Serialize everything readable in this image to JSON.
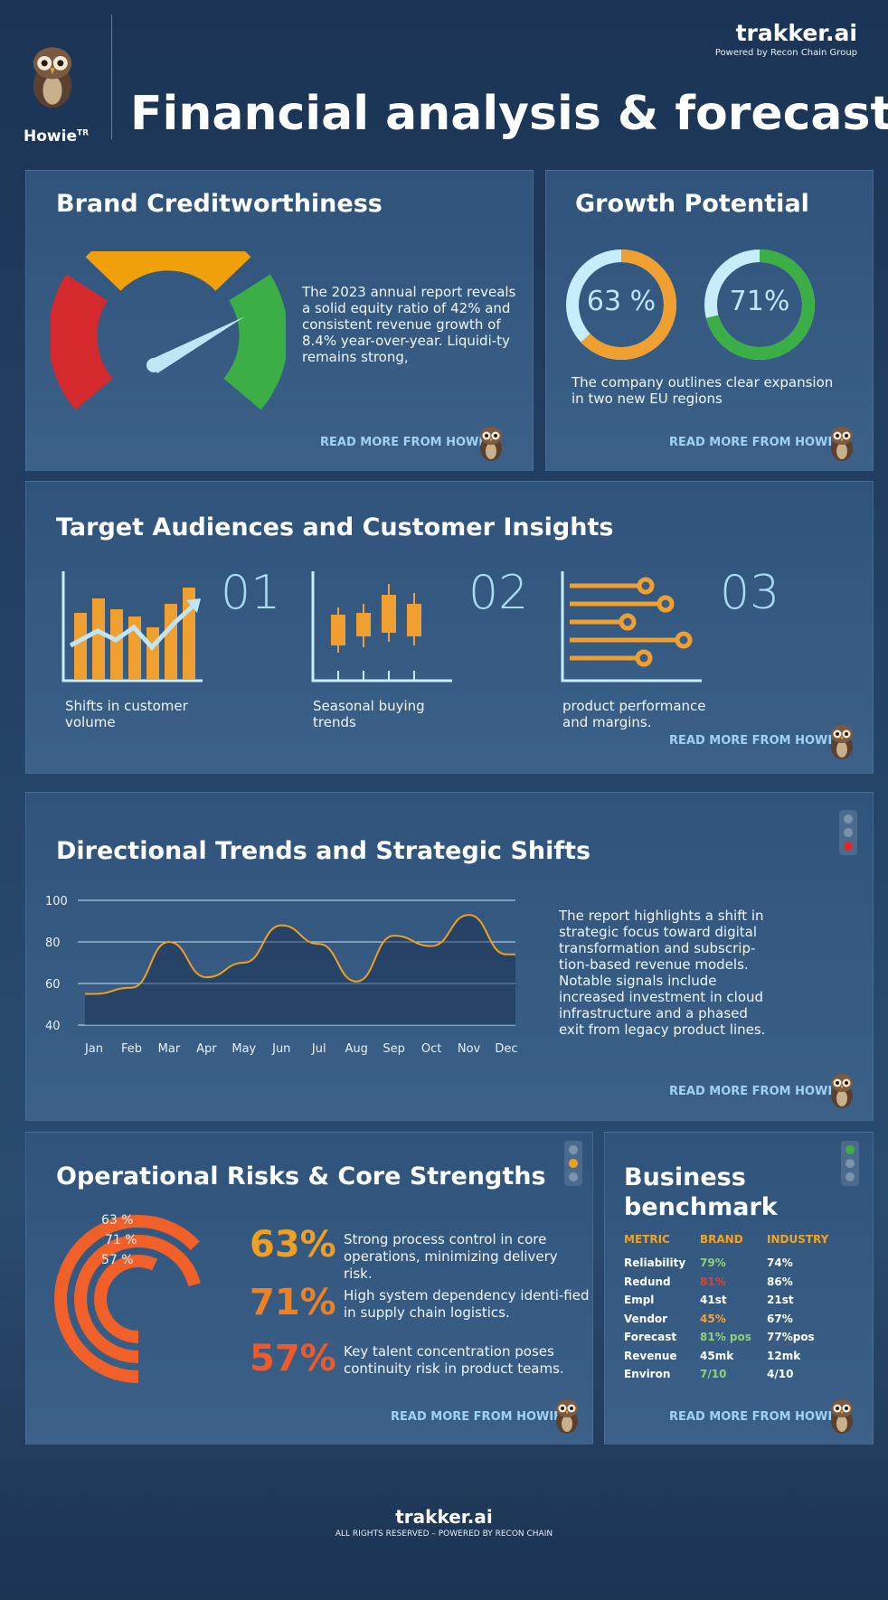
{
  "header": {
    "brand": "trakker.ai",
    "brand_sub": "Powered by Recon Chain Group",
    "mascot": "Howie",
    "mascot_sup": "TR",
    "title": "Financial analysis & forecast"
  },
  "creditworthiness": {
    "title": "Brand Creditworthiness",
    "text": "The 2023 annual report reveals a solid equity ratio of 42% and consistent revenue growth of 8.4% year-over-year. Liquidi-ty remains strong,",
    "read_more": "READ MORE FROM HOWIE",
    "gauge_colors": [
      "#d42a2e",
      "#f0a00a",
      "#3bae45"
    ]
  },
  "growth": {
    "title": "Growth Potential",
    "rings": [
      {
        "label": "63 %",
        "value": 63,
        "color": "#f0a030"
      },
      {
        "label": "71%",
        "value": 71,
        "color": "#3bae45"
      }
    ],
    "text": "The company outlines clear expansion in two new EU regions",
    "read_more": "READ MORE FROM HOWIE"
  },
  "audiences": {
    "title": "Target Audiences and Customer Insights",
    "items": [
      {
        "num": "01",
        "label": "Shifts in customer volume"
      },
      {
        "num": "02",
        "label": "Seasonal buying trends"
      },
      {
        "num": "03",
        "label": "product performance and margins."
      }
    ],
    "read_more": "READ MORE FROM HOWIE"
  },
  "trends": {
    "title": "Directional Trends and Strategic Shifts",
    "text": "The report highlights a shift in strategic focus toward digital transformation and subscrip-tion-based revenue models. Notable signals include increased investment in cloud infrastructure and a phased exit from legacy product lines.",
    "read_more": "READ MORE FROM HOWIE"
  },
  "chart_data": {
    "type": "line",
    "categories": [
      "Jan",
      "Feb",
      "Mar",
      "Apr",
      "May",
      "Jun",
      "Jul",
      "Aug",
      "Sep",
      "Oct",
      "Nov",
      "Dec"
    ],
    "yticks": [
      "100",
      "80",
      "60",
      "40"
    ],
    "ylim": [
      40,
      100
    ],
    "series": [
      {
        "values": [
          55,
          58,
          80,
          63,
          70,
          88,
          79,
          61,
          83,
          78,
          93,
          74
        ]
      }
    ],
    "grid": true
  },
  "risks": {
    "title": "Operational Risks & Core Strengths",
    "ring_labels": [
      "63 %",
      "71 %",
      "57 %"
    ],
    "items": [
      {
        "pct": "63%",
        "color": "#f0a020",
        "text": "Strong process control in core operations, minimizing delivery risk."
      },
      {
        "pct": "71%",
        "color": "#f08020",
        "text": "High system dependency identi-fied in supply chain logistics."
      },
      {
        "pct": "57%",
        "color": "#f05a28",
        "text": "Key talent concentration poses continuity risk in product teams."
      }
    ],
    "read_more": "READ MORE FROM HOWIE"
  },
  "benchmark": {
    "title": "Business benchmark",
    "headers": [
      "METRIC",
      "BRAND",
      "INDUSTRY"
    ],
    "rows": [
      {
        "metric": "Reliability",
        "brand": "79%",
        "industry": "74%",
        "brand_color": "#8fd17a"
      },
      {
        "metric": "Redund",
        "brand": "81%",
        "industry": "86%",
        "brand_color": "#e04030"
      },
      {
        "metric": "Empl",
        "brand": "41st",
        "industry": "21st",
        "brand_color": "#ffffff"
      },
      {
        "metric": "Vendor",
        "brand": "45%",
        "industry": "67%",
        "brand_color": "#f5a040"
      },
      {
        "metric": "Forecast",
        "brand": "81% pos",
        "industry": "77%pos",
        "brand_color": "#8fd17a"
      },
      {
        "metric": "Revenue",
        "brand": "45mk",
        "industry": "12mk",
        "brand_color": "#ffffff"
      },
      {
        "metric": "Environ",
        "brand": "7/10",
        "industry": "4/10",
        "brand_color": "#8fd17a"
      }
    ],
    "read_more": "READ MORE FROM HOWIE"
  },
  "footer": {
    "brand": "trakker.ai",
    "rights": "ALL RIGHTS RESERVED – POWERED BY RECON CHAIN"
  }
}
